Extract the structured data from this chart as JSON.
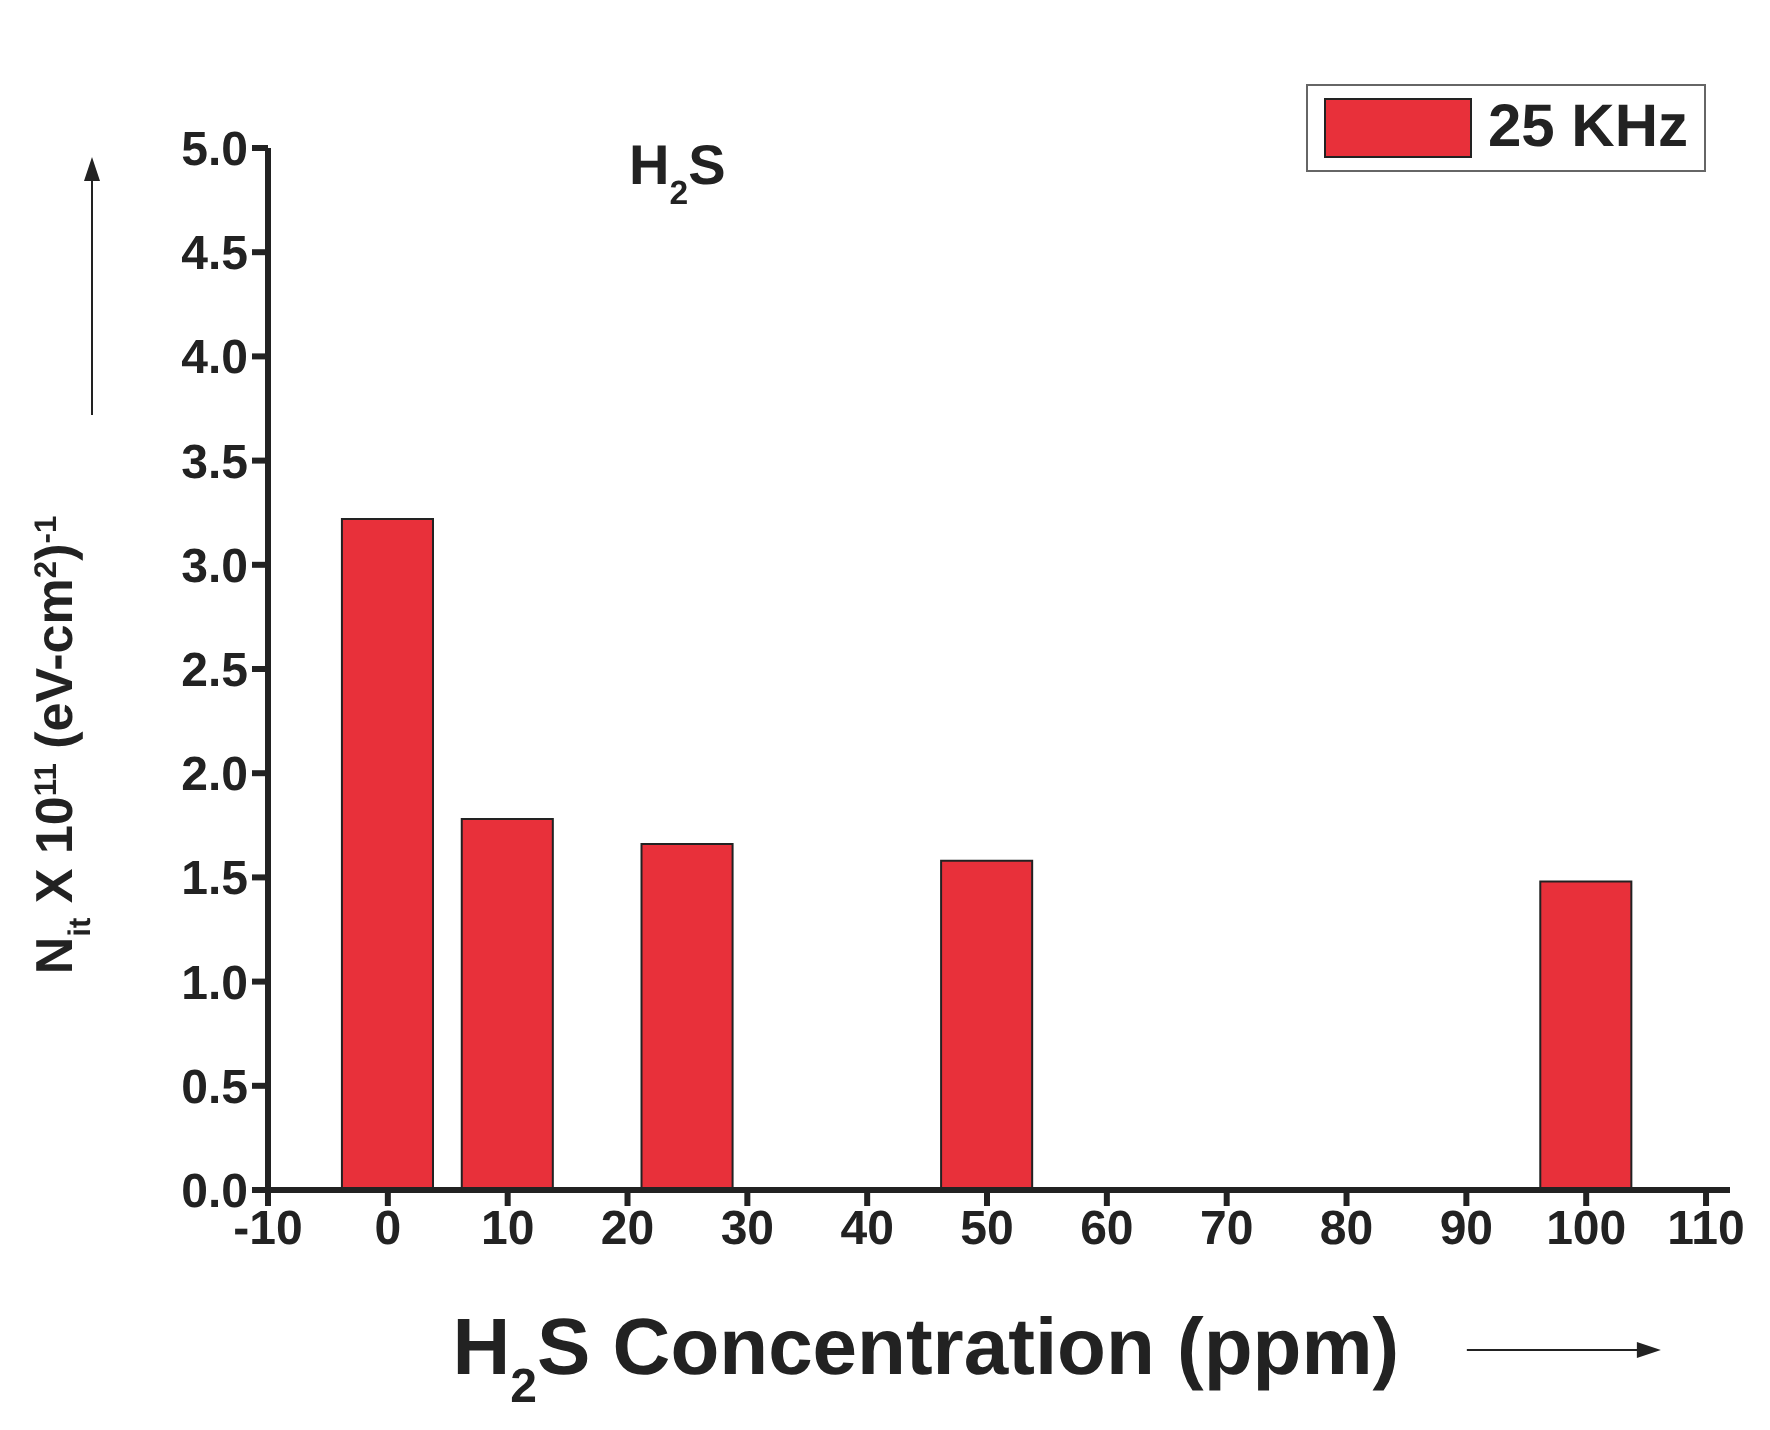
{
  "chart_data": {
    "type": "bar",
    "xlabel": "H$_{2}$S Concentration (ppm)",
    "ylabel": "N$_{it}$ X 10$^{11}$ (eV-cm$^{2}$)$^{-1}$",
    "annotations": [
      "H$_{2}$S"
    ],
    "x": [
      0,
      10,
      25,
      50,
      100
    ],
    "series": [
      {
        "name": "25 KHz",
        "color": "#e8303a",
        "values": [
          3.22,
          1.78,
          1.66,
          1.58,
          1.48
        ]
      }
    ],
    "xlim": [
      -10,
      112
    ],
    "xticks": [
      -10,
      0,
      10,
      20,
      30,
      40,
      50,
      60,
      70,
      80,
      90,
      100,
      110
    ],
    "ylim": [
      0,
      5
    ],
    "yticks": [
      {
        "value": 0,
        "label": "0.0"
      },
      {
        "value": 0.5,
        "label": "0.5"
      },
      {
        "value": 1,
        "label": "1.0"
      },
      {
        "value": 1.5,
        "label": "1.5"
      },
      {
        "value": 2,
        "label": "2.0"
      },
      {
        "value": 2.5,
        "label": "2.5"
      },
      {
        "value": 3,
        "label": "3.0"
      },
      {
        "value": 3.5,
        "label": "3.5"
      },
      {
        "value": 4,
        "label": "4.0"
      },
      {
        "value": 4.5,
        "label": "4.5"
      },
      {
        "value": 5,
        "label": "5.0"
      }
    ],
    "grid": false,
    "legend": "top right"
  }
}
